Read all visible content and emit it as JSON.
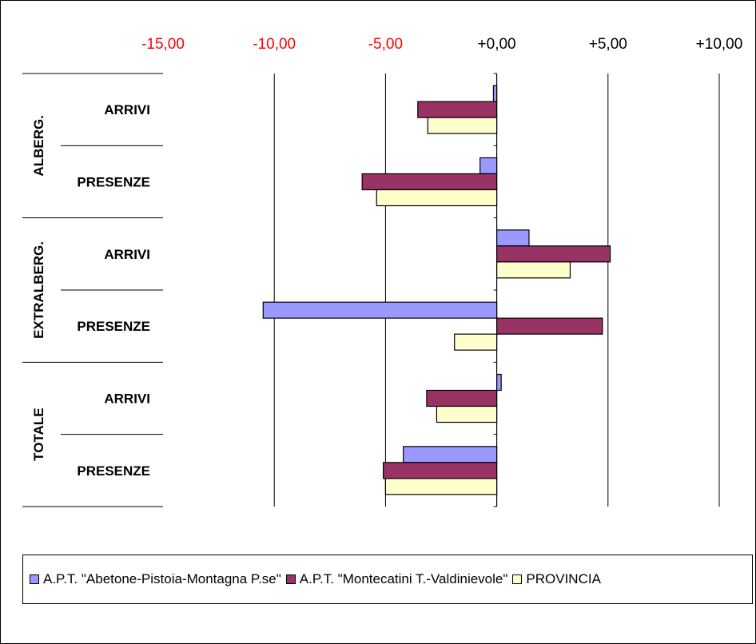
{
  "chart_data": {
    "type": "bar",
    "orientation": "horizontal",
    "title": "",
    "xlim": [
      -15,
      10
    ],
    "x_ticks": [
      "-15,00",
      "-10,00",
      "-5,00",
      "+0,00",
      "+5,00",
      "+10,00"
    ],
    "x_tick_values": [
      -15,
      -10,
      -5,
      0,
      5,
      10
    ],
    "negative_tick_color": "#ff0000",
    "groups": [
      {
        "label": "ALBERG.",
        "categories": [
          "ARRIVI",
          "PRESENZE"
        ]
      },
      {
        "label": "EXTRALBERG.",
        "categories": [
          "ARRIVI",
          "PRESENZE"
        ]
      },
      {
        "label": "TOTALE",
        "categories": [
          "ARRIVI",
          "PRESENZE"
        ]
      }
    ],
    "series": [
      {
        "name": "A.P.T. \"Abetone-Pistoia-Montagna P.se\"",
        "color": "#9999ff",
        "values": [
          -0.15,
          -0.75,
          1.45,
          -10.5,
          0.2,
          -4.2
        ]
      },
      {
        "name": "A.P.T. \"Montecatini T.-Valdinievole\"",
        "color": "#993366",
        "values": [
          -3.55,
          -6.05,
          5.1,
          4.75,
          -3.15,
          -5.1
        ]
      },
      {
        "name": "PROVINCIA",
        "color": "#ffffcc",
        "values": [
          -3.1,
          -5.4,
          3.3,
          -1.9,
          -2.7,
          -5.0
        ]
      }
    ],
    "grid": true,
    "legend_position": "bottom"
  }
}
